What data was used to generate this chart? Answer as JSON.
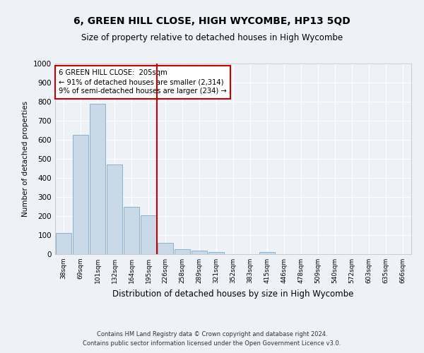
{
  "title": "6, GREEN HILL CLOSE, HIGH WYCOMBE, HP13 5QD",
  "subtitle": "Size of property relative to detached houses in High Wycombe",
  "xlabel": "Distribution of detached houses by size in High Wycombe",
  "ylabel": "Number of detached properties",
  "bar_labels": [
    "38sqm",
    "69sqm",
    "101sqm",
    "132sqm",
    "164sqm",
    "195sqm",
    "226sqm",
    "258sqm",
    "289sqm",
    "321sqm",
    "352sqm",
    "383sqm",
    "415sqm",
    "446sqm",
    "478sqm",
    "509sqm",
    "540sqm",
    "572sqm",
    "603sqm",
    "635sqm",
    "666sqm"
  ],
  "bar_values": [
    110,
    625,
    790,
    470,
    250,
    205,
    60,
    25,
    18,
    12,
    0,
    0,
    10,
    0,
    0,
    0,
    0,
    0,
    0,
    0,
    0
  ],
  "bar_color": "#c9d9e8",
  "bar_edge_color": "#7aaac8",
  "ylim": [
    0,
    1000
  ],
  "yticks": [
    0,
    100,
    200,
    300,
    400,
    500,
    600,
    700,
    800,
    900,
    1000
  ],
  "vline_x": 5.5,
  "vline_color": "#cc0000",
  "annotation_text": "6 GREEN HILL CLOSE:  205sqm\n← 91% of detached houses are smaller (2,314)\n9% of semi-detached houses are larger (234) →",
  "annotation_box_color": "#cc0000",
  "footer_line1": "Contains HM Land Registry data © Crown copyright and database right 2024.",
  "footer_line2": "Contains public sector information licensed under the Open Government Licence v3.0.",
  "background_color": "#eef2f7",
  "grid_color": "#ffffff"
}
